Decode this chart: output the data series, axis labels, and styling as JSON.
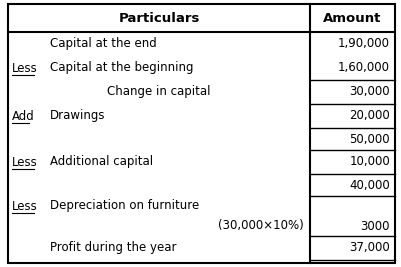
{
  "col1_header": "Particulars",
  "col2_header": "Amount",
  "rows": [
    {
      "prefix": "",
      "underline": false,
      "text": "Capital at the end",
      "center": false,
      "amount": "1,90,000",
      "top_border": false,
      "bottom_border": false
    },
    {
      "prefix": "Less",
      "underline": true,
      "text": "Capital at the beginning",
      "center": false,
      "amount": "1,60,000",
      "top_border": false,
      "bottom_border": true
    },
    {
      "prefix": "",
      "underline": false,
      "text": "Change in capital",
      "center": true,
      "amount": "30,000",
      "top_border": false,
      "bottom_border": true
    },
    {
      "prefix": "Add",
      "underline": true,
      "text": "Drawings",
      "center": false,
      "amount": "20,000",
      "top_border": false,
      "bottom_border": true
    },
    {
      "prefix": "",
      "underline": false,
      "text": "",
      "center": false,
      "amount": "50,000",
      "top_border": false,
      "bottom_border": true
    },
    {
      "prefix": "Less",
      "underline": true,
      "text": "Additional capital",
      "center": false,
      "amount": "10,000",
      "top_border": false,
      "bottom_border": true
    },
    {
      "prefix": "",
      "underline": false,
      "text": "",
      "center": false,
      "amount": "40,000",
      "top_border": false,
      "bottom_border": true
    },
    {
      "prefix": "Less",
      "underline": true,
      "text": "Depreciation on furniture",
      "center": false,
      "amount": "",
      "top_border": false,
      "bottom_border": false
    },
    {
      "prefix": "",
      "underline": false,
      "text": "(30,000×10%)",
      "center": false,
      "amount": "3000",
      "top_border": false,
      "bottom_border": true,
      "text_right": true
    },
    {
      "prefix": "",
      "underline": false,
      "text": "Profit during the year",
      "center": false,
      "amount": "37,000",
      "top_border": false,
      "bottom_border": true
    }
  ],
  "bg_color": "#ffffff",
  "border_color": "#000000",
  "font_size": 8.5,
  "header_font_size": 9.5,
  "fig_width": 4.01,
  "fig_height": 2.67,
  "dpi": 100
}
